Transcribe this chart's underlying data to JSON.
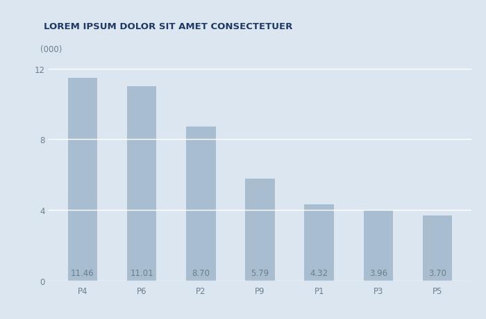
{
  "categories": [
    "P4",
    "P6",
    "P2",
    "P9",
    "P1",
    "P3",
    "P5"
  ],
  "values": [
    11.46,
    11.01,
    8.7,
    5.79,
    4.32,
    3.96,
    3.7
  ],
  "bar_color": "#a8bdd0",
  "background_color": "#dce6f0",
  "title": "LOREM IPSUM DOLOR SIT AMET CONSECTETUER",
  "title_fontsize": 9.5,
  "title_color": "#1f3864",
  "ylabel_text": "(000)",
  "yticks": [
    0,
    4,
    8,
    12
  ],
  "ylim": [
    0,
    13.2
  ],
  "bar_label_color": "#6b7f8e",
  "bar_label_fontsize": 8.5,
  "tick_label_fontsize": 8.5,
  "tick_label_color": "#6b7f8e",
  "grid_color": "#ffffff",
  "grid_linewidth": 1.0,
  "bar_width": 0.5
}
